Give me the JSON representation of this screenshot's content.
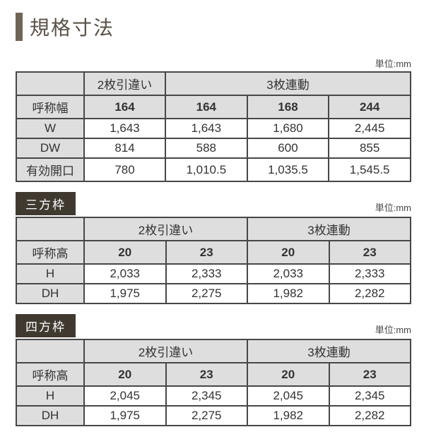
{
  "title": "規格寸法",
  "unit_label": "単位:mm",
  "colors": {
    "accent_bar": "#706555",
    "title_text": "#595148",
    "badge_bg": "#403930",
    "badge_text": "#ffffff",
    "table_border": "#474747",
    "header_bg": "#dedede",
    "cell_bg": "#ffffff"
  },
  "table1": {
    "group_a": "2枚引違い",
    "group_b": "3枚連動",
    "row_labels": [
      "呼称幅",
      "W",
      "DW",
      "有効開口"
    ],
    "a_cols": [
      "164"
    ],
    "b_cols": [
      "164",
      "168",
      "244"
    ],
    "rows": {
      "W": {
        "a": [
          "1,643"
        ],
        "b": [
          "1,643",
          "1,680",
          "2,445"
        ]
      },
      "DW": {
        "a": [
          "814"
        ],
        "b": [
          "588",
          "600",
          "855"
        ]
      },
      "eff": {
        "a": [
          "780"
        ],
        "b": [
          "1,010.5",
          "1,035.5",
          "1,545.5"
        ]
      }
    }
  },
  "section2": {
    "badge": "三方枠",
    "group_a": "2枚引違い",
    "group_b": "3枚連動",
    "row_labels": [
      "呼称高",
      "H",
      "DH"
    ],
    "sub_a": [
      "20",
      "23"
    ],
    "sub_b": [
      "20",
      "23"
    ],
    "rows": {
      "H": {
        "a": [
          "2,033",
          "2,333"
        ],
        "b": [
          "2,033",
          "2,333"
        ]
      },
      "DH": {
        "a": [
          "1,975",
          "2,275"
        ],
        "b": [
          "1,982",
          "2,282"
        ]
      }
    }
  },
  "section3": {
    "badge": "四方枠",
    "group_a": "2枚引違い",
    "group_b": "3枚連動",
    "row_labels": [
      "呼称高",
      "H",
      "DH"
    ],
    "sub_a": [
      "20",
      "23"
    ],
    "sub_b": [
      "20",
      "23"
    ],
    "rows": {
      "H": {
        "a": [
          "2,045",
          "2,345"
        ],
        "b": [
          "2,045",
          "2,345"
        ]
      },
      "DH": {
        "a": [
          "1,975",
          "2,275"
        ],
        "b": [
          "1,982",
          "2,282"
        ]
      }
    }
  }
}
